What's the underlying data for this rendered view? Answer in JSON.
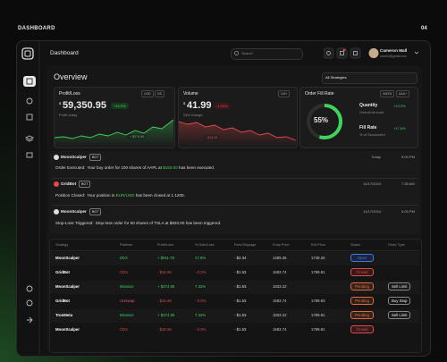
{
  "frame": {
    "title": "DASHBOARD",
    "page": "04"
  },
  "header": {
    "title": "Dashboard",
    "search_placeholder": "Search",
    "user": {
      "name": "Cameron Mall",
      "email": "cam10@gmail.com"
    }
  },
  "overview": {
    "title": "Overview",
    "filter": "All Strategies",
    "cards": [
      {
        "title": "Profit/Loss",
        "tabs": [
          "USD",
          "NS"
        ],
        "currency": "$",
        "value": "59,350.95",
        "change": "+16.5%",
        "caption": "Profit today",
        "annotation": "+ $374.96"
      },
      {
        "title": "Volume",
        "tabs": [
          "24H"
        ],
        "currency": "$",
        "value": "41.99",
        "change": "-1.09%",
        "caption": "24H change",
        "annotation": "-$13.25"
      },
      {
        "title": "Order Fill Rate",
        "tabs": [
          "AMZN",
          "AAA+"
        ],
        "gauge": "55%",
        "stats": [
          {
            "label": "Quantity",
            "change": "+13.3%",
            "caption": "Overall Amount"
          },
          {
            "label": "Fill Rate",
            "change": "+17.6%",
            "caption": "% of Successful"
          }
        ]
      }
    ]
  },
  "notifications": [
    {
      "bot": "MoonScalper",
      "tag": "BOT",
      "date": "Today",
      "time": "5:09 PM",
      "event": "Order Executed:",
      "message": [
        "Your buy order for 100 shares of AAPL at ",
        "$150.00",
        " has been executed."
      ]
    },
    {
      "bot": "GridBot",
      "tag": "BOT",
      "date": "11/17/2024",
      "time": "7:35 AM",
      "event": "Position Closed:",
      "message": [
        "Your position in ",
        "EUR/USD",
        " has been closed at 1.1200."
      ]
    },
    {
      "bot": "MoonScalper",
      "tag": "BOT",
      "date": "11/17/2024",
      "time": "5:09 PM",
      "event": "Stop-Loss Triggered:",
      "message": [
        "Stop-loss order for 50 shares of TSLA at $820.00 has been triggered."
      ]
    }
  ],
  "table": {
    "columns": [
      "Strategy",
      "Platform",
      "Profit/Loss",
      "% Gain/Loss",
      "Fees/Slippage",
      "Entry Price",
      "Exit Price",
      "Status",
      "Order Type"
    ],
    "rows": [
      [
        "MoonScalper",
        "DEX",
        "+ $911.78",
        "17.8%",
        "- $2.34",
        "1489.36",
        "1748.26",
        "Open",
        null
      ],
      [
        "GridBot",
        "CEX",
        "- $15.36",
        "- 0.3%",
        "- $1.53",
        "1682.74",
        "1799.81",
        "Closed",
        null
      ],
      [
        "MoonScalper",
        "Binance",
        "+ $374.96",
        "7.32%",
        "- $1.53",
        "1833.22",
        null,
        "Pending",
        "Sell Limit"
      ],
      [
        "GridBot",
        "Uniswap",
        "- $15.36",
        "- 0.3%",
        "- $1.53",
        "1682.74",
        "1799.83",
        "Pending",
        "Buy Stop"
      ],
      [
        "TronMeta",
        "Binance",
        "+ $374.96",
        "7.32%",
        "- $1.53",
        "1833.22",
        "1799.81",
        "Pending",
        "Sell Limit"
      ],
      [
        "MoonScalper",
        "CEX",
        "- $15.36",
        "- 0.3%",
        "- $1.53",
        "1682.74",
        "1799.81",
        "Closed",
        null
      ]
    ]
  }
}
